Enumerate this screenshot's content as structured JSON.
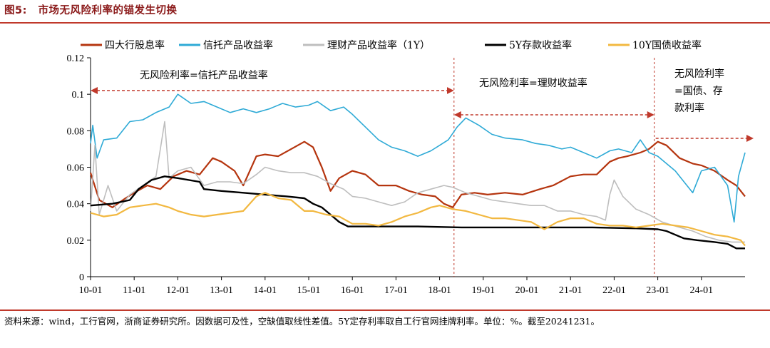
{
  "figure": {
    "label": "图5:",
    "title": "市场无风险利率的锚发生切换",
    "source": "资料来源：wind，工行官网，浙商证券研究所。因数据可及性，空缺值取线性差值。5Y定存利率取自工行官网挂牌利率。单位：%。截至20241231。"
  },
  "chart_data": {
    "type": "line",
    "y_range": [
      0,
      0.12
    ],
    "y_ticks": [
      "0",
      "0.02",
      "0.04",
      "0.06",
      "0.08",
      "0.1",
      "0.12"
    ],
    "x_ticks": [
      "10-01",
      "11-01",
      "12-01",
      "13-01",
      "14-01",
      "15-01",
      "16-01",
      "17-01",
      "18-01",
      "19-01",
      "20-01",
      "21-01",
      "22-01",
      "23-01",
      "24-01"
    ],
    "x_start": "10-01",
    "x_end": "24-12",
    "series": [
      {
        "name": "四大行股息率",
        "color": "#b5350f",
        "width": 2.2,
        "points": [
          [
            2010.0,
            0.057
          ],
          [
            2010.2,
            0.042
          ],
          [
            2010.5,
            0.038
          ],
          [
            2010.8,
            0.043
          ],
          [
            2011.0,
            0.046
          ],
          [
            2011.3,
            0.05
          ],
          [
            2011.6,
            0.048
          ],
          [
            2011.9,
            0.055
          ],
          [
            2012.2,
            0.058
          ],
          [
            2012.5,
            0.056
          ],
          [
            2012.8,
            0.065
          ],
          [
            2013.0,
            0.063
          ],
          [
            2013.3,
            0.058
          ],
          [
            2013.5,
            0.05
          ],
          [
            2013.8,
            0.066
          ],
          [
            2014.0,
            0.067
          ],
          [
            2014.3,
            0.066
          ],
          [
            2014.6,
            0.07
          ],
          [
            2014.9,
            0.074
          ],
          [
            2015.1,
            0.071
          ],
          [
            2015.3,
            0.06
          ],
          [
            2015.5,
            0.047
          ],
          [
            2015.7,
            0.054
          ],
          [
            2016.0,
            0.058
          ],
          [
            2016.3,
            0.056
          ],
          [
            2016.6,
            0.05
          ],
          [
            2017.0,
            0.05
          ],
          [
            2017.3,
            0.047
          ],
          [
            2017.6,
            0.045
          ],
          [
            2017.9,
            0.044
          ],
          [
            2018.1,
            0.04
          ],
          [
            2018.3,
            0.038
          ],
          [
            2018.5,
            0.045
          ],
          [
            2018.8,
            0.046
          ],
          [
            2019.1,
            0.045
          ],
          [
            2019.5,
            0.046
          ],
          [
            2019.9,
            0.045
          ],
          [
            2020.3,
            0.048
          ],
          [
            2020.6,
            0.05
          ],
          [
            2021.0,
            0.055
          ],
          [
            2021.3,
            0.056
          ],
          [
            2021.6,
            0.056
          ],
          [
            2021.9,
            0.063
          ],
          [
            2022.1,
            0.065
          ],
          [
            2022.3,
            0.066
          ],
          [
            2022.6,
            0.068
          ],
          [
            2022.8,
            0.07
          ],
          [
            2023.0,
            0.074
          ],
          [
            2023.2,
            0.072
          ],
          [
            2023.5,
            0.065
          ],
          [
            2023.8,
            0.062
          ],
          [
            2024.0,
            0.061
          ],
          [
            2024.3,
            0.058
          ],
          [
            2024.6,
            0.053
          ],
          [
            2024.8,
            0.05
          ],
          [
            2025.0,
            0.044
          ]
        ]
      },
      {
        "name": "信托产品收益率",
        "color": "#2eaad6",
        "width": 1.6,
        "points": [
          [
            2010.0,
            0.073
          ],
          [
            2010.05,
            0.083
          ],
          [
            2010.15,
            0.065
          ],
          [
            2010.3,
            0.075
          ],
          [
            2010.6,
            0.076
          ],
          [
            2010.9,
            0.085
          ],
          [
            2011.2,
            0.086
          ],
          [
            2011.5,
            0.09
          ],
          [
            2011.8,
            0.093
          ],
          [
            2012.0,
            0.1
          ],
          [
            2012.3,
            0.095
          ],
          [
            2012.6,
            0.096
          ],
          [
            2012.9,
            0.093
          ],
          [
            2013.2,
            0.09
          ],
          [
            2013.5,
            0.092
          ],
          [
            2013.8,
            0.09
          ],
          [
            2014.1,
            0.092
          ],
          [
            2014.4,
            0.095
          ],
          [
            2014.7,
            0.093
          ],
          [
            2015.0,
            0.094
          ],
          [
            2015.2,
            0.096
          ],
          [
            2015.5,
            0.091
          ],
          [
            2015.8,
            0.093
          ],
          [
            2016.0,
            0.089
          ],
          [
            2016.3,
            0.082
          ],
          [
            2016.6,
            0.075
          ],
          [
            2016.9,
            0.071
          ],
          [
            2017.2,
            0.069
          ],
          [
            2017.5,
            0.066
          ],
          [
            2017.8,
            0.069
          ],
          [
            2018.0,
            0.072
          ],
          [
            2018.2,
            0.075
          ],
          [
            2018.4,
            0.082
          ],
          [
            2018.6,
            0.087
          ],
          [
            2018.9,
            0.083
          ],
          [
            2019.2,
            0.078
          ],
          [
            2019.5,
            0.076
          ],
          [
            2019.9,
            0.075
          ],
          [
            2020.2,
            0.073
          ],
          [
            2020.5,
            0.072
          ],
          [
            2020.8,
            0.07
          ],
          [
            2021.0,
            0.071
          ],
          [
            2021.3,
            0.068
          ],
          [
            2021.6,
            0.065
          ],
          [
            2021.9,
            0.069
          ],
          [
            2022.1,
            0.07
          ],
          [
            2022.4,
            0.068
          ],
          [
            2022.6,
            0.075
          ],
          [
            2022.8,
            0.068
          ],
          [
            2023.0,
            0.066
          ],
          [
            2023.4,
            0.058
          ],
          [
            2023.8,
            0.046
          ],
          [
            2024.0,
            0.058
          ],
          [
            2024.3,
            0.06
          ],
          [
            2024.6,
            0.05
          ],
          [
            2024.75,
            0.03
          ],
          [
            2024.85,
            0.055
          ],
          [
            2025.0,
            0.068
          ]
        ]
      },
      {
        "name": "理财产品收益率（1Y）",
        "color": "#bebebe",
        "width": 1.6,
        "points": [
          [
            2010.0,
            0.036
          ],
          [
            2010.1,
            0.072
          ],
          [
            2010.2,
            0.034
          ],
          [
            2010.4,
            0.05
          ],
          [
            2010.6,
            0.036
          ],
          [
            2010.9,
            0.045
          ],
          [
            2011.2,
            0.05
          ],
          [
            2011.5,
            0.055
          ],
          [
            2011.7,
            0.085
          ],
          [
            2011.8,
            0.054
          ],
          [
            2012.0,
            0.058
          ],
          [
            2012.3,
            0.06
          ],
          [
            2012.6,
            0.05
          ],
          [
            2012.9,
            0.052
          ],
          [
            2013.2,
            0.052
          ],
          [
            2013.5,
            0.051
          ],
          [
            2013.8,
            0.056
          ],
          [
            2014.0,
            0.06
          ],
          [
            2014.3,
            0.058
          ],
          [
            2014.6,
            0.057
          ],
          [
            2014.9,
            0.057
          ],
          [
            2015.2,
            0.055
          ],
          [
            2015.5,
            0.051
          ],
          [
            2015.8,
            0.048
          ],
          [
            2016.0,
            0.044
          ],
          [
            2016.3,
            0.043
          ],
          [
            2016.6,
            0.041
          ],
          [
            2016.9,
            0.039
          ],
          [
            2017.2,
            0.041
          ],
          [
            2017.5,
            0.046
          ],
          [
            2017.8,
            0.048
          ],
          [
            2018.1,
            0.05
          ],
          [
            2018.3,
            0.049
          ],
          [
            2018.6,
            0.046
          ],
          [
            2018.9,
            0.044
          ],
          [
            2019.2,
            0.042
          ],
          [
            2019.5,
            0.041
          ],
          [
            2019.8,
            0.04
          ],
          [
            2020.1,
            0.039
          ],
          [
            2020.4,
            0.039
          ],
          [
            2020.7,
            0.036
          ],
          [
            2021.0,
            0.036
          ],
          [
            2021.3,
            0.034
          ],
          [
            2021.6,
            0.033
          ],
          [
            2021.8,
            0.031
          ],
          [
            2021.9,
            0.045
          ],
          [
            2022.0,
            0.053
          ],
          [
            2022.2,
            0.044
          ],
          [
            2022.5,
            0.037
          ],
          [
            2022.8,
            0.034
          ],
          [
            2023.1,
            0.03
          ],
          [
            2023.5,
            0.027
          ],
          [
            2023.8,
            0.025
          ],
          [
            2024.1,
            0.022
          ],
          [
            2024.4,
            0.02
          ],
          [
            2024.7,
            0.019
          ],
          [
            2025.0,
            0.019
          ]
        ]
      },
      {
        "name": "5Y存款收益率",
        "color": "#000000",
        "width": 2.4,
        "points": [
          [
            2010.0,
            0.039
          ],
          [
            2010.5,
            0.04
          ],
          [
            2010.9,
            0.042
          ],
          [
            2011.1,
            0.048
          ],
          [
            2011.4,
            0.053
          ],
          [
            2011.7,
            0.055
          ],
          [
            2012.0,
            0.054
          ],
          [
            2012.5,
            0.052
          ],
          [
            2012.6,
            0.048
          ],
          [
            2013.0,
            0.047
          ],
          [
            2013.5,
            0.046
          ],
          [
            2014.0,
            0.045
          ],
          [
            2014.5,
            0.044
          ],
          [
            2014.9,
            0.043
          ],
          [
            2015.1,
            0.04
          ],
          [
            2015.3,
            0.038
          ],
          [
            2015.5,
            0.034
          ],
          [
            2015.7,
            0.03
          ],
          [
            2015.9,
            0.0275
          ],
          [
            2016.5,
            0.0275
          ],
          [
            2017.5,
            0.0275
          ],
          [
            2018.5,
            0.027
          ],
          [
            2019.5,
            0.027
          ],
          [
            2020.5,
            0.027
          ],
          [
            2021.5,
            0.027
          ],
          [
            2022.5,
            0.0265
          ],
          [
            2023.0,
            0.026
          ],
          [
            2023.2,
            0.025
          ],
          [
            2023.4,
            0.023
          ],
          [
            2023.6,
            0.021
          ],
          [
            2023.9,
            0.02
          ],
          [
            2024.3,
            0.019
          ],
          [
            2024.6,
            0.018
          ],
          [
            2024.8,
            0.0155
          ],
          [
            2025.0,
            0.0155
          ]
        ]
      },
      {
        "name": "10Y国债收益率",
        "color": "#f2b840",
        "width": 2.2,
        "points": [
          [
            2010.0,
            0.035
          ],
          [
            2010.3,
            0.033
          ],
          [
            2010.6,
            0.034
          ],
          [
            2010.9,
            0.038
          ],
          [
            2011.2,
            0.039
          ],
          [
            2011.5,
            0.04
          ],
          [
            2011.8,
            0.038
          ],
          [
            2012.0,
            0.036
          ],
          [
            2012.3,
            0.034
          ],
          [
            2012.6,
            0.033
          ],
          [
            2012.9,
            0.034
          ],
          [
            2013.2,
            0.035
          ],
          [
            2013.5,
            0.036
          ],
          [
            2013.8,
            0.044
          ],
          [
            2014.0,
            0.046
          ],
          [
            2014.3,
            0.043
          ],
          [
            2014.6,
            0.042
          ],
          [
            2014.9,
            0.036
          ],
          [
            2015.1,
            0.036
          ],
          [
            2015.4,
            0.034
          ],
          [
            2015.7,
            0.033
          ],
          [
            2016.0,
            0.029
          ],
          [
            2016.3,
            0.029
          ],
          [
            2016.6,
            0.028
          ],
          [
            2016.9,
            0.03
          ],
          [
            2017.2,
            0.033
          ],
          [
            2017.5,
            0.035
          ],
          [
            2017.8,
            0.038
          ],
          [
            2018.0,
            0.039
          ],
          [
            2018.3,
            0.037
          ],
          [
            2018.6,
            0.036
          ],
          [
            2018.9,
            0.034
          ],
          [
            2019.2,
            0.032
          ],
          [
            2019.5,
            0.032
          ],
          [
            2019.8,
            0.031
          ],
          [
            2020.1,
            0.03
          ],
          [
            2020.4,
            0.026
          ],
          [
            2020.7,
            0.03
          ],
          [
            2021.0,
            0.032
          ],
          [
            2021.3,
            0.032
          ],
          [
            2021.6,
            0.029
          ],
          [
            2021.9,
            0.028
          ],
          [
            2022.2,
            0.028
          ],
          [
            2022.5,
            0.027
          ],
          [
            2022.8,
            0.028
          ],
          [
            2023.1,
            0.029
          ],
          [
            2023.4,
            0.028
          ],
          [
            2023.7,
            0.027
          ],
          [
            2024.0,
            0.025
          ],
          [
            2024.3,
            0.023
          ],
          [
            2024.6,
            0.022
          ],
          [
            2024.9,
            0.02
          ],
          [
            2025.0,
            0.017
          ]
        ]
      }
    ],
    "annotations": [
      {
        "lines": [
          "无风险利率=信托产品收益率"
        ]
      },
      {
        "lines": [
          "无风险利率=理财收益率"
        ]
      },
      {
        "lines": [
          "无风险利率",
          "=国债、存",
          "款利率"
        ]
      }
    ]
  }
}
